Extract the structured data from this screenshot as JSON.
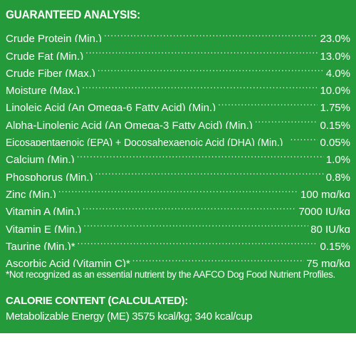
{
  "guaranteed_analysis": {
    "heading": "GUARANTEED ANALYSIS:",
    "rows": [
      {
        "label": "Crude Protein (Min.)",
        "value": "23.0%"
      },
      {
        "label": "Crude Fat (Min.)",
        "value": "13.0%"
      },
      {
        "label": "Crude Fiber (Max.)",
        "value": "4.0%"
      },
      {
        "label": "Moisture (Max.)",
        "value": "10.0%"
      },
      {
        "label": "Linoleic Acid (An Omega-6 Fatty Acid) (Min.)",
        "value": "1.75%"
      },
      {
        "label": "Alpha-Linolenic Acid (An Omega-3 Fatty Acid) (Min.)",
        "value": "0.15%"
      },
      {
        "label": "Eicosapentaenoic (EPA) + Docosahexaenoic Acid (DHA) (Min.)",
        "value": "0.05%"
      },
      {
        "label": "Calcium (Min.)",
        "value": "1.0%"
      },
      {
        "label": "Phosphorus (Min.)",
        "value": "0.8%"
      },
      {
        "label": "Zinc (Min.)",
        "value": "100 mg/kg"
      },
      {
        "label": "Vitamin A (Min.)",
        "value": "7000 IU/kg"
      },
      {
        "label": "Vitamin E (Min.)",
        "value": "80 IU/kg"
      },
      {
        "label": "Taurine (Min.)*",
        "value": "0.15%"
      },
      {
        "label": "Ascorbic Acid (Vitamin C)*",
        "value": "75 mg/kg"
      }
    ],
    "footnote": "*Not recognized as an essential nutrient by the AAFCO Dog Food Nutrient Profiles."
  },
  "calorie_content": {
    "heading": "CALORIE CONTENT (CALCULATED):",
    "text": "Metabolizable Energy (ME) 3575 kcal/kg; 340 kcal/cup"
  },
  "colors": {
    "panel_background": "#259a3a",
    "text": "#ffffff"
  }
}
